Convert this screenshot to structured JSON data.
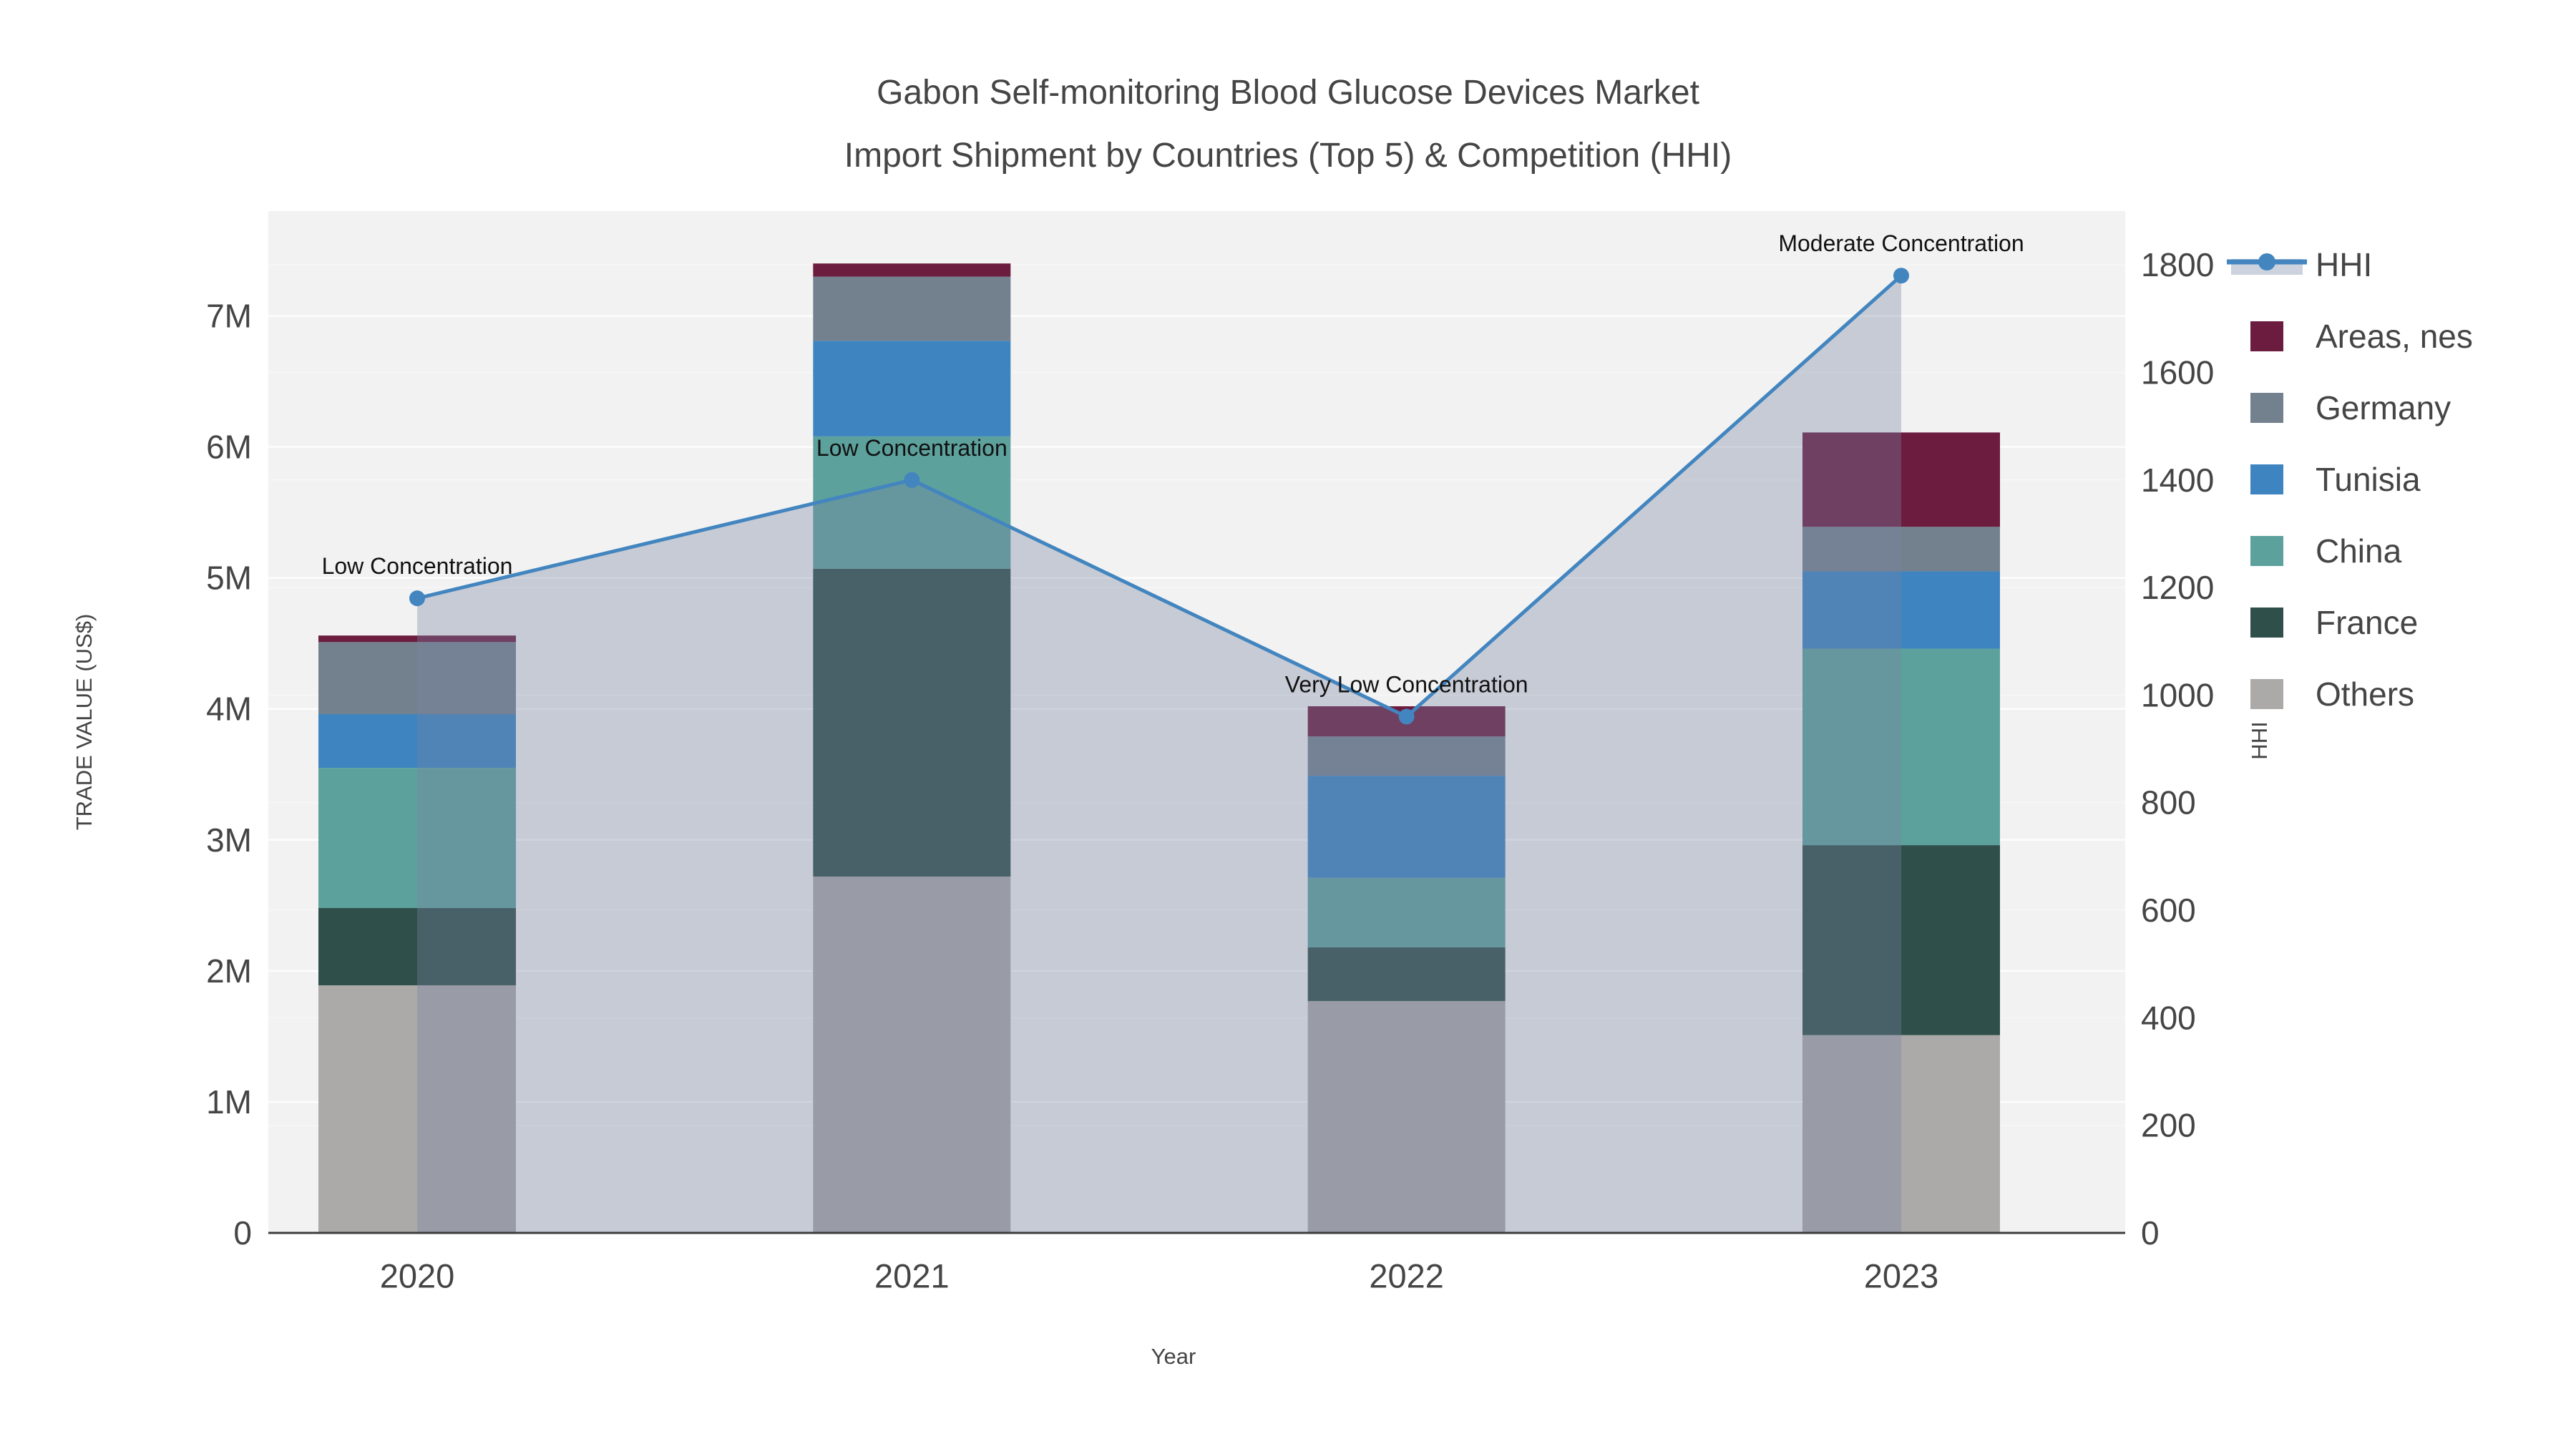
{
  "title": {
    "line1": "Gabon Self-monitoring Blood Glucose Devices Market",
    "line2": "Import Shipment by Countries (Top 5) & Competition (HHI)"
  },
  "colors": {
    "background": "#ffffff",
    "plot_background": "#f2f2f2",
    "grid": "#ffffff",
    "axis_line": "#3d3d3d",
    "tick_text": "#454545",
    "annotation_text": "#111111",
    "hhi_line": "#4285bf",
    "hhi_area_fill": "rgba(120,132,162,0.35)",
    "legend_band": "#ccd3de"
  },
  "chart_data": {
    "type": "bar",
    "subtype": "stacked-bar-with-line",
    "title": "Gabon Self-monitoring Blood Glucose Devices Market Import Shipment by Countries (Top 5) & Competition (HHI)",
    "xlabel": "Year",
    "ylabel_left": "TRADE VALUE (US$)",
    "ylabel_right": "HHI",
    "categories": [
      "2020",
      "2021",
      "2022",
      "2023"
    ],
    "series": [
      {
        "name": "Others",
        "color": "#abaaa8",
        "values": [
          1890000,
          2720000,
          1770000,
          1510000
        ]
      },
      {
        "name": "France",
        "color": "#2e4f4a",
        "values": [
          590000,
          2350000,
          410000,
          1450000
        ]
      },
      {
        "name": "China",
        "color": "#5da19d",
        "values": [
          1070000,
          1010000,
          530000,
          1500000
        ]
      },
      {
        "name": "Tunisia",
        "color": "#3d84c0",
        "values": [
          410000,
          730000,
          780000,
          590000
        ]
      },
      {
        "name": "Germany",
        "color": "#73808e",
        "values": [
          550000,
          490000,
          300000,
          340000
        ]
      },
      {
        "name": "Areas, nes",
        "color": "#6b1c3f",
        "values": [
          50000,
          100000,
          230000,
          720000
        ]
      }
    ],
    "line_series": {
      "name": "HHI",
      "color": "#4285bf",
      "values": [
        1180,
        1400,
        960,
        1780
      ],
      "area_fill": true
    },
    "annotations": [
      {
        "category": "2020",
        "text": "Low Concentration"
      },
      {
        "category": "2021",
        "text": "Low Concentration"
      },
      {
        "category": "2022",
        "text": "Very Low Concentration"
      },
      {
        "category": "2023",
        "text": "Moderate Concentration"
      }
    ],
    "ylim_left": [
      0,
      7800000
    ],
    "ylim_right": [
      0,
      1900
    ],
    "yticks_left": [
      {
        "value": 0,
        "label": "0"
      },
      {
        "value": 1000000,
        "label": "1M"
      },
      {
        "value": 2000000,
        "label": "2M"
      },
      {
        "value": 3000000,
        "label": "3M"
      },
      {
        "value": 4000000,
        "label": "4M"
      },
      {
        "value": 5000000,
        "label": "5M"
      },
      {
        "value": 6000000,
        "label": "6M"
      },
      {
        "value": 7000000,
        "label": "7M"
      }
    ],
    "yticks_right": [
      {
        "value": 0,
        "label": "0"
      },
      {
        "value": 200,
        "label": "200"
      },
      {
        "value": 400,
        "label": "400"
      },
      {
        "value": 600,
        "label": "600"
      },
      {
        "value": 800,
        "label": "800"
      },
      {
        "value": 1000,
        "label": "1000"
      },
      {
        "value": 1200,
        "label": "1200"
      },
      {
        "value": 1400,
        "label": "1400"
      },
      {
        "value": 1600,
        "label": "1600"
      },
      {
        "value": 1800,
        "label": "1800"
      }
    ],
    "grid": true,
    "legend_position": "right",
    "legend": [
      {
        "label": "HHI",
        "type": "line"
      },
      {
        "label": "Areas, nes",
        "type": "swatch"
      },
      {
        "label": "Germany",
        "type": "swatch"
      },
      {
        "label": "Tunisia",
        "type": "swatch"
      },
      {
        "label": "China",
        "type": "swatch"
      },
      {
        "label": "France",
        "type": "swatch"
      },
      {
        "label": "Others",
        "type": "swatch"
      }
    ]
  }
}
